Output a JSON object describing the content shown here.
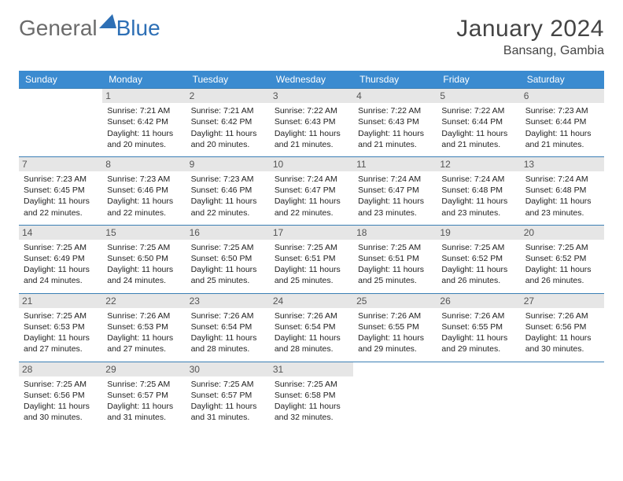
{
  "logo": {
    "general": "General",
    "blue": "Blue"
  },
  "title": {
    "month": "January 2024",
    "location": "Bansang, Gambia"
  },
  "colors": {
    "header_bg": "#3b8bd0",
    "header_text": "#ffffff",
    "border": "#3b7fb5",
    "daynum_bg": "#e6e6e6",
    "logo_blue": "#2d6fb5",
    "logo_gray": "#6b6b6b"
  },
  "weekdays": [
    "Sunday",
    "Monday",
    "Tuesday",
    "Wednesday",
    "Thursday",
    "Friday",
    "Saturday"
  ],
  "cells": [
    [
      null,
      {
        "n": "1",
        "sunrise": "Sunrise: 7:21 AM",
        "sunset": "Sunset: 6:42 PM",
        "dl1": "Daylight: 11 hours",
        "dl2": "and 20 minutes."
      },
      {
        "n": "2",
        "sunrise": "Sunrise: 7:21 AM",
        "sunset": "Sunset: 6:42 PM",
        "dl1": "Daylight: 11 hours",
        "dl2": "and 20 minutes."
      },
      {
        "n": "3",
        "sunrise": "Sunrise: 7:22 AM",
        "sunset": "Sunset: 6:43 PM",
        "dl1": "Daylight: 11 hours",
        "dl2": "and 21 minutes."
      },
      {
        "n": "4",
        "sunrise": "Sunrise: 7:22 AM",
        "sunset": "Sunset: 6:43 PM",
        "dl1": "Daylight: 11 hours",
        "dl2": "and 21 minutes."
      },
      {
        "n": "5",
        "sunrise": "Sunrise: 7:22 AM",
        "sunset": "Sunset: 6:44 PM",
        "dl1": "Daylight: 11 hours",
        "dl2": "and 21 minutes."
      },
      {
        "n": "6",
        "sunrise": "Sunrise: 7:23 AM",
        "sunset": "Sunset: 6:44 PM",
        "dl1": "Daylight: 11 hours",
        "dl2": "and 21 minutes."
      }
    ],
    [
      {
        "n": "7",
        "sunrise": "Sunrise: 7:23 AM",
        "sunset": "Sunset: 6:45 PM",
        "dl1": "Daylight: 11 hours",
        "dl2": "and 22 minutes."
      },
      {
        "n": "8",
        "sunrise": "Sunrise: 7:23 AM",
        "sunset": "Sunset: 6:46 PM",
        "dl1": "Daylight: 11 hours",
        "dl2": "and 22 minutes."
      },
      {
        "n": "9",
        "sunrise": "Sunrise: 7:23 AM",
        "sunset": "Sunset: 6:46 PM",
        "dl1": "Daylight: 11 hours",
        "dl2": "and 22 minutes."
      },
      {
        "n": "10",
        "sunrise": "Sunrise: 7:24 AM",
        "sunset": "Sunset: 6:47 PM",
        "dl1": "Daylight: 11 hours",
        "dl2": "and 22 minutes."
      },
      {
        "n": "11",
        "sunrise": "Sunrise: 7:24 AM",
        "sunset": "Sunset: 6:47 PM",
        "dl1": "Daylight: 11 hours",
        "dl2": "and 23 minutes."
      },
      {
        "n": "12",
        "sunrise": "Sunrise: 7:24 AM",
        "sunset": "Sunset: 6:48 PM",
        "dl1": "Daylight: 11 hours",
        "dl2": "and 23 minutes."
      },
      {
        "n": "13",
        "sunrise": "Sunrise: 7:24 AM",
        "sunset": "Sunset: 6:48 PM",
        "dl1": "Daylight: 11 hours",
        "dl2": "and 23 minutes."
      }
    ],
    [
      {
        "n": "14",
        "sunrise": "Sunrise: 7:25 AM",
        "sunset": "Sunset: 6:49 PM",
        "dl1": "Daylight: 11 hours",
        "dl2": "and 24 minutes."
      },
      {
        "n": "15",
        "sunrise": "Sunrise: 7:25 AM",
        "sunset": "Sunset: 6:50 PM",
        "dl1": "Daylight: 11 hours",
        "dl2": "and 24 minutes."
      },
      {
        "n": "16",
        "sunrise": "Sunrise: 7:25 AM",
        "sunset": "Sunset: 6:50 PM",
        "dl1": "Daylight: 11 hours",
        "dl2": "and 25 minutes."
      },
      {
        "n": "17",
        "sunrise": "Sunrise: 7:25 AM",
        "sunset": "Sunset: 6:51 PM",
        "dl1": "Daylight: 11 hours",
        "dl2": "and 25 minutes."
      },
      {
        "n": "18",
        "sunrise": "Sunrise: 7:25 AM",
        "sunset": "Sunset: 6:51 PM",
        "dl1": "Daylight: 11 hours",
        "dl2": "and 25 minutes."
      },
      {
        "n": "19",
        "sunrise": "Sunrise: 7:25 AM",
        "sunset": "Sunset: 6:52 PM",
        "dl1": "Daylight: 11 hours",
        "dl2": "and 26 minutes."
      },
      {
        "n": "20",
        "sunrise": "Sunrise: 7:25 AM",
        "sunset": "Sunset: 6:52 PM",
        "dl1": "Daylight: 11 hours",
        "dl2": "and 26 minutes."
      }
    ],
    [
      {
        "n": "21",
        "sunrise": "Sunrise: 7:25 AM",
        "sunset": "Sunset: 6:53 PM",
        "dl1": "Daylight: 11 hours",
        "dl2": "and 27 minutes."
      },
      {
        "n": "22",
        "sunrise": "Sunrise: 7:26 AM",
        "sunset": "Sunset: 6:53 PM",
        "dl1": "Daylight: 11 hours",
        "dl2": "and 27 minutes."
      },
      {
        "n": "23",
        "sunrise": "Sunrise: 7:26 AM",
        "sunset": "Sunset: 6:54 PM",
        "dl1": "Daylight: 11 hours",
        "dl2": "and 28 minutes."
      },
      {
        "n": "24",
        "sunrise": "Sunrise: 7:26 AM",
        "sunset": "Sunset: 6:54 PM",
        "dl1": "Daylight: 11 hours",
        "dl2": "and 28 minutes."
      },
      {
        "n": "25",
        "sunrise": "Sunrise: 7:26 AM",
        "sunset": "Sunset: 6:55 PM",
        "dl1": "Daylight: 11 hours",
        "dl2": "and 29 minutes."
      },
      {
        "n": "26",
        "sunrise": "Sunrise: 7:26 AM",
        "sunset": "Sunset: 6:55 PM",
        "dl1": "Daylight: 11 hours",
        "dl2": "and 29 minutes."
      },
      {
        "n": "27",
        "sunrise": "Sunrise: 7:26 AM",
        "sunset": "Sunset: 6:56 PM",
        "dl1": "Daylight: 11 hours",
        "dl2": "and 30 minutes."
      }
    ],
    [
      {
        "n": "28",
        "sunrise": "Sunrise: 7:25 AM",
        "sunset": "Sunset: 6:56 PM",
        "dl1": "Daylight: 11 hours",
        "dl2": "and 30 minutes."
      },
      {
        "n": "29",
        "sunrise": "Sunrise: 7:25 AM",
        "sunset": "Sunset: 6:57 PM",
        "dl1": "Daylight: 11 hours",
        "dl2": "and 31 minutes."
      },
      {
        "n": "30",
        "sunrise": "Sunrise: 7:25 AM",
        "sunset": "Sunset: 6:57 PM",
        "dl1": "Daylight: 11 hours",
        "dl2": "and 31 minutes."
      },
      {
        "n": "31",
        "sunrise": "Sunrise: 7:25 AM",
        "sunset": "Sunset: 6:58 PM",
        "dl1": "Daylight: 11 hours",
        "dl2": "and 32 minutes."
      },
      null,
      null,
      null
    ]
  ]
}
